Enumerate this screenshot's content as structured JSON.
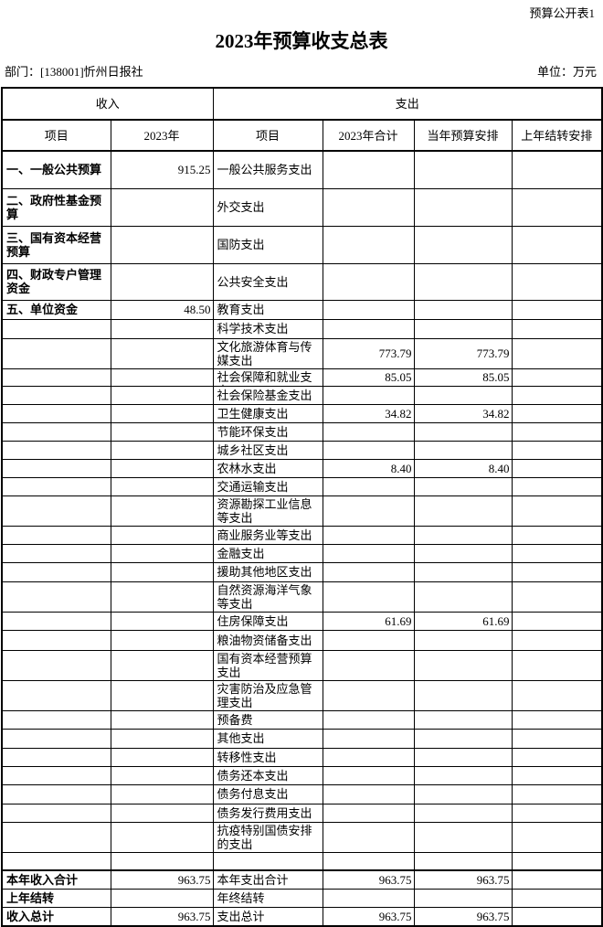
{
  "page": {
    "corner_label": "预算公开表1",
    "title": "2023年预算收支总表",
    "department": "部门：[138001]忻州日报社",
    "unit": "单位：万元"
  },
  "table": {
    "income_header": "收入",
    "expense_header": "支出",
    "columns": [
      "项目",
      "2023年",
      "项目",
      "2023年合计",
      "当年预算安排",
      "上年结转安排"
    ],
    "rows": [
      [
        "一、一般公共预算",
        "915.25",
        "一般公共服务支出",
        "",
        "",
        ""
      ],
      [
        "二、政府性基金预算",
        "",
        "外交支出",
        "",
        "",
        ""
      ],
      [
        "三、国有资本经营预算",
        "",
        "国防支出",
        "",
        "",
        ""
      ],
      [
        "四、财政专户管理资金",
        "",
        "公共安全支出",
        "",
        "",
        ""
      ],
      [
        "五、单位资金",
        "48.50",
        "教育支出",
        "",
        "",
        ""
      ],
      [
        "",
        "",
        "科学技术支出",
        "",
        "",
        ""
      ],
      [
        "",
        "",
        "文化旅游体育与传媒支出",
        "773.79",
        "773.79",
        ""
      ],
      [
        "",
        "",
        "社会保障和就业支出",
        "85.05",
        "85.05",
        ""
      ],
      [
        "",
        "",
        "社会保险基金支出",
        "",
        "",
        ""
      ],
      [
        "",
        "",
        "卫生健康支出",
        "34.82",
        "34.82",
        ""
      ],
      [
        "",
        "",
        "节能环保支出",
        "",
        "",
        ""
      ],
      [
        "",
        "",
        "城乡社区支出",
        "",
        "",
        ""
      ],
      [
        "",
        "",
        "农林水支出",
        "8.40",
        "8.40",
        ""
      ],
      [
        "",
        "",
        "交通运输支出",
        "",
        "",
        ""
      ],
      [
        "",
        "",
        "资源勘探工业信息等支出",
        "",
        "",
        ""
      ],
      [
        "",
        "",
        "商业服务业等支出",
        "",
        "",
        ""
      ],
      [
        "",
        "",
        "金融支出",
        "",
        "",
        ""
      ],
      [
        "",
        "",
        "援助其他地区支出",
        "",
        "",
        ""
      ],
      [
        "",
        "",
        "自然资源海洋气象等支出",
        "",
        "",
        ""
      ],
      [
        "",
        "",
        "住房保障支出",
        "61.69",
        "61.69",
        ""
      ],
      [
        "",
        "",
        "粮油物资储备支出",
        "",
        "",
        ""
      ],
      [
        "",
        "",
        "国有资本经营预算支出",
        "",
        "",
        ""
      ],
      [
        "",
        "",
        "灾害防治及应急管理支出",
        "",
        "",
        ""
      ],
      [
        "",
        "",
        "预备费",
        "",
        "",
        ""
      ],
      [
        "",
        "",
        "其他支出",
        "",
        "",
        ""
      ],
      [
        "",
        "",
        "转移性支出",
        "",
        "",
        ""
      ],
      [
        "",
        "",
        "债务还本支出",
        "",
        "",
        ""
      ],
      [
        "",
        "",
        "债务付息支出",
        "",
        "",
        ""
      ],
      [
        "",
        "",
        "债务发行费用支出",
        "",
        "",
        ""
      ],
      [
        "",
        "",
        "抗疫特别国债安排的支出",
        "",
        "",
        ""
      ],
      [
        "",
        "",
        "",
        "",
        "",
        ""
      ],
      [
        "本年收入合计",
        "963.75",
        "本年支出合计",
        "963.75",
        "963.75",
        ""
      ],
      [
        "上年结转",
        "",
        "年终结转",
        "",
        "",
        ""
      ],
      [
        "收入总计",
        "963.75",
        "支出总计",
        "963.75",
        "963.75",
        ""
      ]
    ]
  }
}
